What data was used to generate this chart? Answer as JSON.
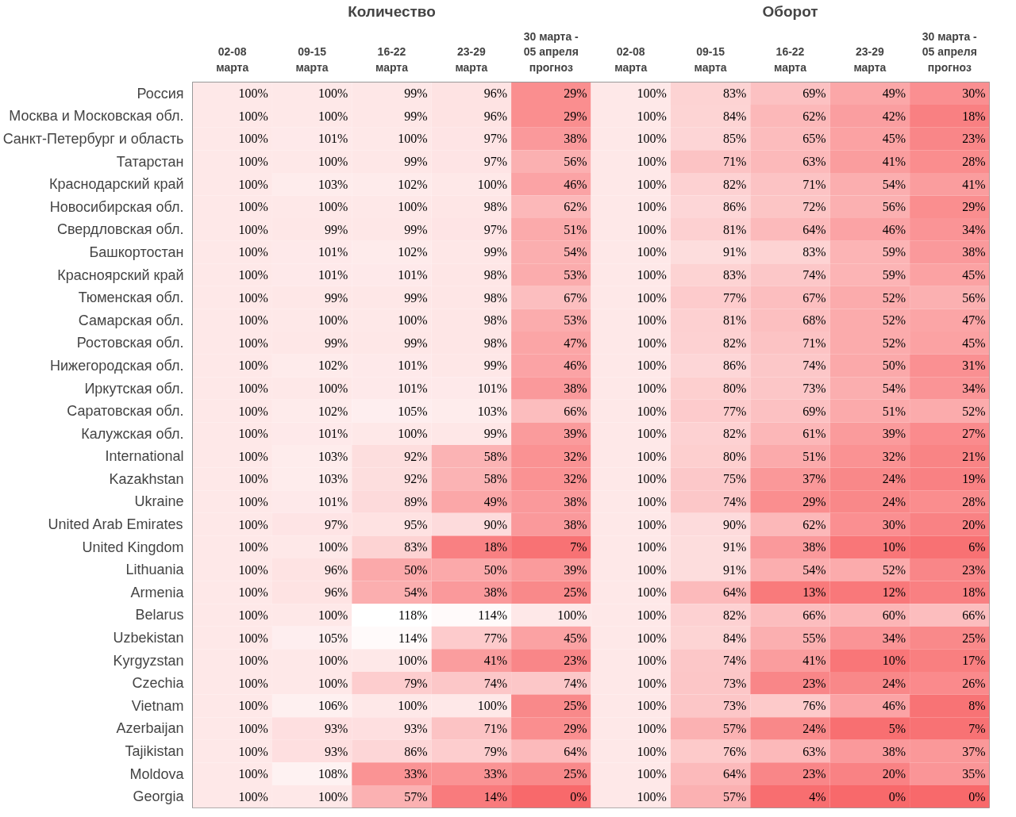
{
  "chart_data": {
    "type": "heatmap",
    "color": "#f8696b",
    "annotations": [
      "Количество",
      "Оборот"
    ],
    "categories": [
      "02-08\nмарта",
      "09-15\nмарта",
      "16-22\nмарта",
      "23-29\nмарта",
      "30 марта -\n05 апреля\nпрогноз",
      "02-08\nмарта",
      "09-15\nмарта",
      "16-22\nмарта",
      "23-29\nмарта",
      "30 марта -\n05 апреля\nпрогноз"
    ],
    "y_categories": [
      "Россия",
      "Москва и Московская обл.",
      "Санкт-Петербург и область",
      "Татарстан",
      "Краснодарский край",
      "Новосибирская обл.",
      "Свердловская обл.",
      "Башкортостан",
      "Красноярский край",
      "Тюменская обл.",
      "Самарская обл.",
      "Ростовская обл.",
      "Нижегородская обл.",
      "Иркутская обл.",
      "Саратовская обл.",
      "Калужская обл.",
      "International",
      "Kazakhstan",
      "Ukraine",
      "United Arab Emirates",
      "United Kingdom",
      "Lithuania",
      "Armenia",
      "Belarus",
      "Uzbekistan",
      "Kyrgyzstan",
      "Czechia",
      "Vietnam",
      "Azerbaijan",
      "Tajikistan",
      "Moldova",
      "Georgia"
    ],
    "cells": [
      [
        100,
        100,
        99,
        96,
        29,
        100,
        83,
        69,
        49,
        30
      ],
      [
        100,
        100,
        99,
        96,
        29,
        100,
        84,
        62,
        42,
        18
      ],
      [
        100,
        101,
        100,
        97,
        38,
        100,
        85,
        65,
        45,
        23
      ],
      [
        100,
        100,
        99,
        97,
        56,
        100,
        71,
        63,
        41,
        28
      ],
      [
        100,
        103,
        102,
        100,
        46,
        100,
        82,
        71,
        54,
        41
      ],
      [
        100,
        100,
        100,
        98,
        62,
        100,
        86,
        72,
        56,
        29
      ],
      [
        100,
        99,
        99,
        97,
        51,
        100,
        81,
        64,
        46,
        34
      ],
      [
        100,
        101,
        102,
        99,
        54,
        100,
        91,
        83,
        59,
        38
      ],
      [
        100,
        101,
        101,
        98,
        53,
        100,
        83,
        74,
        59,
        45
      ],
      [
        100,
        99,
        99,
        98,
        67,
        100,
        77,
        67,
        52,
        56
      ],
      [
        100,
        100,
        100,
        98,
        53,
        100,
        81,
        68,
        52,
        47
      ],
      [
        100,
        99,
        99,
        98,
        47,
        100,
        82,
        71,
        52,
        45
      ],
      [
        100,
        102,
        101,
        99,
        46,
        100,
        86,
        74,
        50,
        31
      ],
      [
        100,
        100,
        101,
        101,
        38,
        100,
        80,
        73,
        54,
        34
      ],
      [
        100,
        102,
        105,
        103,
        66,
        100,
        77,
        69,
        51,
        52
      ],
      [
        100,
        101,
        100,
        99,
        39,
        100,
        82,
        61,
        39,
        27
      ],
      [
        100,
        103,
        92,
        58,
        32,
        100,
        80,
        51,
        32,
        21
      ],
      [
        100,
        103,
        92,
        58,
        32,
        100,
        75,
        37,
        24,
        19
      ],
      [
        100,
        101,
        89,
        49,
        38,
        100,
        74,
        29,
        24,
        28
      ],
      [
        100,
        97,
        95,
        90,
        38,
        100,
        90,
        62,
        30,
        20
      ],
      [
        100,
        100,
        83,
        18,
        7,
        100,
        91,
        38,
        10,
        6
      ],
      [
        100,
        96,
        50,
        50,
        39,
        100,
        91,
        54,
        52,
        23
      ],
      [
        100,
        96,
        54,
        38,
        25,
        100,
        64,
        13,
        12,
        18
      ],
      [
        100,
        100,
        118,
        114,
        100,
        100,
        82,
        66,
        60,
        66
      ],
      [
        100,
        105,
        114,
        77,
        45,
        100,
        84,
        55,
        34,
        25
      ],
      [
        100,
        100,
        100,
        41,
        23,
        100,
        74,
        41,
        10,
        17
      ],
      [
        100,
        100,
        79,
        74,
        74,
        100,
        73,
        23,
        24,
        26
      ],
      [
        100,
        106,
        100,
        100,
        25,
        100,
        73,
        76,
        46,
        8
      ],
      [
        100,
        93,
        93,
        71,
        29,
        100,
        57,
        24,
        5,
        7
      ],
      [
        100,
        93,
        86,
        79,
        64,
        100,
        76,
        63,
        38,
        37
      ],
      [
        100,
        108,
        33,
        33,
        25,
        100,
        64,
        23,
        20,
        35
      ],
      [
        100,
        100,
        57,
        14,
        0,
        100,
        57,
        4,
        0,
        0
      ]
    ],
    "cell_labels": [
      [
        "100%",
        "100%",
        "99%",
        "96%",
        "29%",
        "100%",
        "83%",
        "69%",
        "49%",
        "30%"
      ],
      [
        "100%",
        "100%",
        "99%",
        "96%",
        "29%",
        "100%",
        "84%",
        "62%",
        "42%",
        "18%"
      ],
      [
        "100%",
        "101%",
        "100%",
        "97%",
        "38%",
        "100%",
        "85%",
        "65%",
        "45%",
        "23%"
      ],
      [
        "100%",
        "100%",
        "99%",
        "97%",
        "56%",
        "100%",
        "71%",
        "63%",
        "41%",
        "28%"
      ],
      [
        "100%",
        "103%",
        "102%",
        "100%",
        "46%",
        "100%",
        "82%",
        "71%",
        "54%",
        "41%"
      ],
      [
        "100%",
        "100%",
        "100%",
        "98%",
        "62%",
        "100%",
        "86%",
        "72%",
        "56%",
        "29%"
      ],
      [
        "100%",
        "99%",
        "99%",
        "97%",
        "51%",
        "100%",
        "81%",
        "64%",
        "46%",
        "34%"
      ],
      [
        "100%",
        "101%",
        "102%",
        "99%",
        "54%",
        "100%",
        "91%",
        "83%",
        "59%",
        "38%"
      ],
      [
        "100%",
        "101%",
        "101%",
        "98%",
        "53%",
        "100%",
        "83%",
        "74%",
        "59%",
        "45%"
      ],
      [
        "100%",
        "99%",
        "99%",
        "98%",
        "67%",
        "100%",
        "77%",
        "67%",
        "52%",
        "56%"
      ],
      [
        "100%",
        "100%",
        "100%",
        "98%",
        "53%",
        "100%",
        "81%",
        "68%",
        "52%",
        "47%"
      ],
      [
        "100%",
        "99%",
        "99%",
        "98%",
        "47%",
        "100%",
        "82%",
        "71%",
        "52%",
        "45%"
      ],
      [
        "100%",
        "102%",
        "101%",
        "99%",
        "46%",
        "100%",
        "86%",
        "74%",
        "50%",
        "31%"
      ],
      [
        "100%",
        "100%",
        "101%",
        "101%",
        "38%",
        "100%",
        "80%",
        "73%",
        "54%",
        "34%"
      ],
      [
        "100%",
        "102%",
        "105%",
        "103%",
        "66%",
        "100%",
        "77%",
        "69%",
        "51%",
        "52%"
      ],
      [
        "100%",
        "101%",
        "100%",
        "99%",
        "39%",
        "100%",
        "82%",
        "61%",
        "39%",
        "27%"
      ],
      [
        "100%",
        "103%",
        "92%",
        "58%",
        "32%",
        "100%",
        "80%",
        "51%",
        "32%",
        "21%"
      ],
      [
        "100%",
        "103%",
        "92%",
        "58%",
        "32%",
        "100%",
        "75%",
        "37%",
        "24%",
        "19%"
      ],
      [
        "100%",
        "101%",
        "89%",
        "49%",
        "38%",
        "100%",
        "74%",
        "29%",
        "24%",
        "28%"
      ],
      [
        "100%",
        "97%",
        "95%",
        "90%",
        "38%",
        "100%",
        "90%",
        "62%",
        "30%",
        "20%"
      ],
      [
        "100%",
        "100%",
        "83%",
        "18%",
        "7%",
        "100%",
        "91%",
        "38%",
        "10%",
        "6%"
      ],
      [
        "100%",
        "96%",
        "50%",
        "50%",
        "39%",
        "100%",
        "91%",
        "54%",
        "52%",
        "23%"
      ],
      [
        "100%",
        "96%",
        "54%",
        "38%",
        "25%",
        "100%",
        "64%",
        "13%",
        "12%",
        "18%"
      ],
      [
        "100%",
        "100%",
        "118%",
        "114%",
        "100%",
        "100%",
        "82%",
        "66%",
        "60%",
        "66%"
      ],
      [
        "100%",
        "105%",
        "114%",
        "77%",
        "45%",
        "100%",
        "84%",
        "55%",
        "34%",
        "25%"
      ],
      [
        "100%",
        "100%",
        "100%",
        "41%",
        "23%",
        "100%",
        "74%",
        "41%",
        "10%",
        "17%"
      ],
      [
        "100%",
        "100%",
        "79%",
        "74%",
        "74%",
        "100%",
        "73%",
        "23%",
        "24%",
        "26%"
      ],
      [
        "100%",
        "106%",
        "100%",
        "100%",
        "25%",
        "100%",
        "73%",
        "76%",
        "46%",
        "8%"
      ],
      [
        "100%",
        "93%",
        "93%",
        "71%",
        "29%",
        "100%",
        "57%",
        "24%",
        "5%",
        "7%"
      ],
      [
        "100%",
        "93%",
        "86%",
        "79%",
        "64%",
        "100%",
        "76%",
        "63%",
        "38%",
        "37%"
      ],
      [
        "100%",
        "108%",
        "33%",
        "33%",
        "25%",
        "100%",
        "64%",
        "23%",
        "20%",
        "35%"
      ],
      [
        "100%",
        "100%",
        "57%",
        "14%",
        "0%",
        "100%",
        "57%",
        "4%",
        "0%",
        "0%"
      ]
    ]
  }
}
